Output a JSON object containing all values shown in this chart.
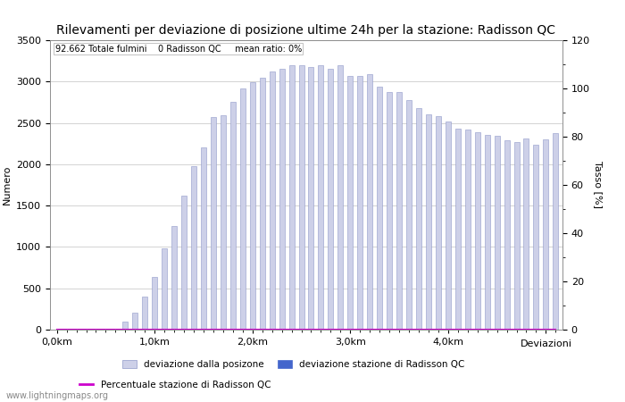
{
  "title": "Rilevamenti per deviazione di posizione ultime 24h per la stazione: Radisson QC",
  "subtitle": "92.662 Totale fulmini    0 Radisson QC     mean ratio: 0%",
  "xlabel": "Deviazioni",
  "ylabel_left": "Numero",
  "ylabel_right": "Tasso [%]",
  "bar_values": [
    0,
    0,
    0,
    0,
    0,
    0,
    0,
    100,
    200,
    400,
    640,
    980,
    1250,
    1620,
    1980,
    2200,
    2570,
    2590,
    2760,
    2920,
    2990,
    3050,
    3120,
    3150,
    3200,
    3200,
    3180,
    3200,
    3150,
    3200,
    3070,
    3070,
    3090,
    2940,
    2870,
    2870,
    2780,
    2680,
    2600,
    2580,
    2520,
    2430,
    2420,
    2390,
    2350,
    2340,
    2290,
    2270,
    2310,
    2240,
    2300,
    2380
  ],
  "bar_color": "#cdd0e8",
  "bar_edge_color": "#9098c8",
  "station_bar_values": [
    0,
    0,
    0,
    0,
    0,
    0,
    0,
    0,
    0,
    0,
    0,
    0,
    0,
    0,
    0,
    0,
    0,
    0,
    0,
    0,
    0,
    0,
    0,
    0,
    0,
    0,
    0,
    0,
    0,
    0,
    0,
    0,
    0,
    0,
    0,
    0,
    0,
    0,
    0,
    0,
    0,
    0,
    0,
    0,
    0,
    0,
    0,
    0,
    0,
    0,
    0,
    0
  ],
  "station_bar_color": "#4466cc",
  "ratio_values": [
    0,
    0,
    0,
    0,
    0,
    0,
    0,
    0,
    0,
    0,
    0,
    0,
    0,
    0,
    0,
    0,
    0,
    0,
    0,
    0,
    0,
    0,
    0,
    0,
    0,
    0,
    0,
    0,
    0,
    0,
    0,
    0,
    0,
    0,
    0,
    0,
    0,
    0,
    0,
    0,
    0,
    0,
    0,
    0,
    0,
    0,
    0,
    0,
    0,
    0,
    0,
    0
  ],
  "ratio_color": "#cc00cc",
  "x_tick_positions": [
    0,
    10,
    20,
    30,
    40,
    50
  ],
  "x_tick_labels": [
    "0,0km",
    "1,0km",
    "2,0km",
    "3,0km",
    "4,0km",
    ""
  ],
  "ylim_left": [
    0,
    3500
  ],
  "ylim_right": [
    0,
    120
  ],
  "yticks_left": [
    0,
    500,
    1000,
    1500,
    2000,
    2500,
    3000,
    3500
  ],
  "yticks_right": [
    0,
    20,
    40,
    60,
    80,
    100,
    120
  ],
  "background_color": "#ffffff",
  "grid_color": "#cccccc",
  "title_fontsize": 10,
  "axis_label_fontsize": 8,
  "tick_fontsize": 8,
  "watermark": "www.lightningmaps.org",
  "legend_entries": [
    {
      "label": "deviazione dalla posizone",
      "color": "#cdd0e8",
      "edge": "#9098c8",
      "type": "bar"
    },
    {
      "label": "deviazione stazione di Radisson QC",
      "color": "#4466cc",
      "edge": "#4466cc",
      "type": "bar"
    },
    {
      "label": "Percentuale stazione di Radisson QC",
      "color": "#cc00cc",
      "type": "line"
    }
  ]
}
